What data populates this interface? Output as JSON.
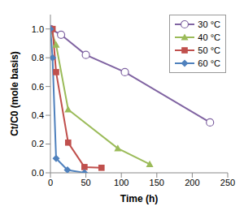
{
  "chart_data": {
    "type": "line",
    "xlabel": "Time (h)",
    "ylabel": "Ct/C0 (mole basis)",
    "xlim": [
      0,
      250
    ],
    "xticks": [
      0,
      50,
      100,
      150,
      200,
      250
    ],
    "ylim": [
      0,
      1.1
    ],
    "yticks": [
      {
        "value": 0,
        "label": "0.0"
      },
      0.2,
      0.4,
      0.6,
      0.8,
      {
        "value": 1,
        "label": "1.0"
      }
    ],
    "grid": false,
    "legend": "top-right",
    "series": [
      {
        "name": "30 °C",
        "color": "#8064a2",
        "marker": "open-circle",
        "x": [
          0,
          15,
          50,
          105,
          225
        ],
        "values": [
          1.0,
          0.96,
          0.82,
          0.7,
          0.35
        ]
      },
      {
        "name": "40 °C",
        "color": "#9bbb59",
        "marker": "triangle",
        "x": [
          0,
          8,
          25,
          95,
          140
        ],
        "values": [
          1.0,
          0.89,
          0.44,
          0.17,
          0.06
        ]
      },
      {
        "name": "50 °C",
        "color": "#c0504d",
        "marker": "square",
        "x": [
          0,
          3,
          8,
          25,
          48,
          72
        ],
        "values": [
          1.0,
          1.0,
          0.7,
          0.21,
          0.04,
          0.035
        ]
      },
      {
        "name": "60 °C",
        "color": "#4f81bd",
        "marker": "diamond",
        "x": [
          0,
          3,
          8,
          24,
          48
        ],
        "values": [
          1.0,
          0.8,
          0.1,
          0.02,
          0.0
        ]
      }
    ]
  }
}
